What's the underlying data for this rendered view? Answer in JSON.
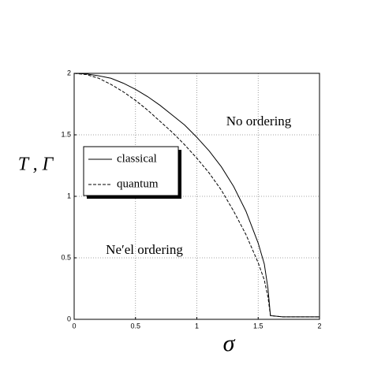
{
  "chart_data": {
    "type": "line",
    "xlabel": "σ",
    "ylabel": "T , Γ",
    "annotations": [
      "No ordering",
      "Ne′el ordering"
    ],
    "x": [
      0,
      0.1,
      0.2,
      0.3,
      0.4,
      0.5,
      0.6,
      0.7,
      0.8,
      0.9,
      1.0,
      1.1,
      1.2,
      1.3,
      1.4,
      1.5,
      1.55,
      1.58,
      1.6,
      1.7,
      1.8,
      1.9,
      2.0
    ],
    "series": [
      {
        "name": "classical",
        "color": "#000000",
        "linestyle": "solid",
        "values": [
          2,
          1.995,
          1.98,
          1.96,
          1.92,
          1.87,
          1.81,
          1.74,
          1.66,
          1.58,
          1.48,
          1.37,
          1.24,
          1.08,
          0.88,
          0.62,
          0.45,
          0.25,
          0.03,
          0.02,
          0.02,
          0.02,
          0.02
        ]
      },
      {
        "name": "quantum",
        "color": "#000000",
        "linestyle": "dashed",
        "values": [
          2,
          1.99,
          1.96,
          1.91,
          1.85,
          1.78,
          1.7,
          1.61,
          1.52,
          1.42,
          1.31,
          1.19,
          1.05,
          0.88,
          0.69,
          0.46,
          0.32,
          0.18,
          0.03,
          0.02,
          0.02,
          0.02,
          0.02
        ]
      }
    ],
    "xlim": [
      0,
      2
    ],
    "xticks": [
      0,
      0.5,
      1,
      1.5,
      2
    ],
    "ylim": [
      0,
      2
    ],
    "yticks": [
      0,
      0.5,
      1,
      1.5,
      2
    ],
    "grid": true,
    "legend": "center left"
  }
}
